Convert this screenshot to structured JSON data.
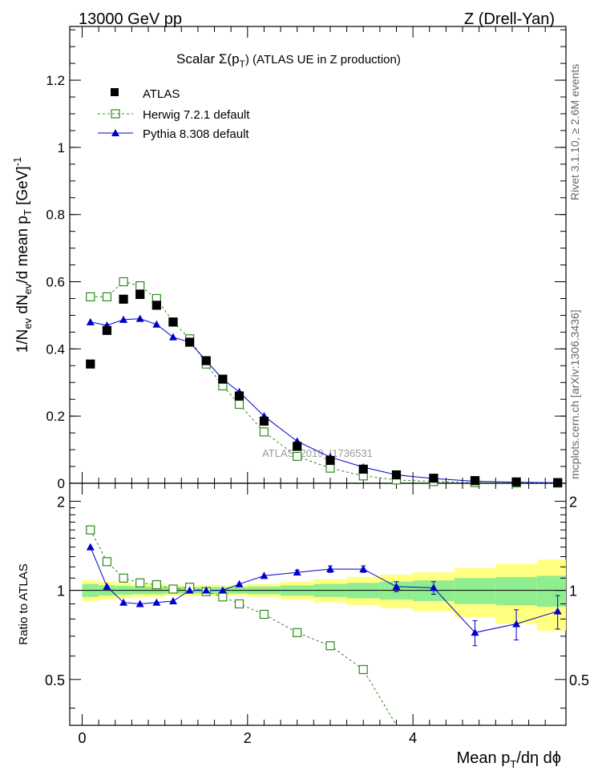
{
  "header": {
    "left": "13000 GeV pp",
    "right": "Z (Drell-Yan)"
  },
  "title": {
    "prefix": "Scalar ",
    "sigma": "Σ(p",
    "sub": "T",
    "suffix": ") (ATLAS UE in Z production)"
  },
  "ylabel_main": {
    "t1": "1/N",
    "s1": "ev",
    "t2": " dN",
    "s2": "ev",
    "t3": "/d mean p",
    "s3": "T",
    "t4": " [GeV]",
    "sup": "-1"
  },
  "ylabel_ratio": "Ratio to ATLAS",
  "xlabel": {
    "t1": "Mean p",
    "sub": "T",
    "t2": "/dη dϕ"
  },
  "side_text": {
    "rivet": "Rivet 3.1.10, ≥ 2.6M events",
    "mcplots": "mcplots.cern.ch [arXiv:1306.3436]"
  },
  "watermark": "ATLAS_2019_I1736531",
  "legend": {
    "atlas": "ATLAS",
    "herwig": "Herwig 7.2.1 default",
    "pythia": "Pythia 8.308 default"
  },
  "colors": {
    "atlas": "#000000",
    "herwig": "#2e8b1a",
    "pythia": "#0000cc",
    "band_inner": "#90ee90",
    "band_outer": "#ffff80"
  },
  "chart_data": [
    {
      "type": "scatter",
      "panel": "main",
      "xlim": [
        -0.15,
        5.85
      ],
      "ylim": [
        0,
        1.36
      ],
      "yticks": [
        "0",
        "0.2",
        "0.4",
        "0.6",
        "0.8",
        "1",
        "1.2"
      ],
      "series": [
        {
          "name": "ATLAS",
          "x": [
            0.1,
            0.3,
            0.5,
            0.7,
            0.9,
            1.1,
            1.3,
            1.5,
            1.7,
            1.9,
            2.2,
            2.6,
            3.0,
            3.4,
            3.8,
            4.25,
            4.75,
            5.25,
            5.75
          ],
          "y": [
            0.355,
            0.455,
            0.548,
            0.562,
            0.53,
            0.48,
            0.42,
            0.365,
            0.31,
            0.26,
            0.185,
            0.11,
            0.068,
            0.042,
            0.025,
            0.015,
            0.008,
            0.004,
            0.002
          ]
        },
        {
          "name": "Herwig 7.2.1 default",
          "x": [
            0.1,
            0.3,
            0.5,
            0.7,
            0.9,
            1.1,
            1.3,
            1.5,
            1.7,
            1.9,
            2.2,
            2.6,
            3.0,
            3.4,
            3.8,
            4.25,
            4.75,
            5.25,
            5.75
          ],
          "y": [
            0.555,
            0.555,
            0.6,
            0.588,
            0.55,
            0.48,
            0.43,
            0.355,
            0.29,
            0.235,
            0.153,
            0.08,
            0.045,
            0.022,
            0.01,
            0.005,
            0.002,
            0.001,
            0.0005
          ]
        },
        {
          "name": "Pythia 8.308 default",
          "x": [
            0.1,
            0.3,
            0.5,
            0.7,
            0.9,
            1.1,
            1.3,
            1.5,
            1.7,
            1.9,
            2.2,
            2.6,
            3.0,
            3.4,
            3.8,
            4.25,
            4.75,
            5.25,
            5.75
          ],
          "y": [
            0.48,
            0.47,
            0.487,
            0.49,
            0.473,
            0.435,
            0.42,
            0.365,
            0.31,
            0.272,
            0.2,
            0.125,
            0.078,
            0.048,
            0.025,
            0.014,
            0.006,
            0.003,
            0.0015
          ]
        }
      ]
    },
    {
      "type": "line",
      "panel": "ratio",
      "xlim": [
        -0.15,
        5.85
      ],
      "ylim": [
        0.35,
        2.3
      ],
      "yticks": [
        "0.5",
        "1",
        "2"
      ],
      "xticks": [
        "0",
        "2",
        "4"
      ],
      "band_edges": [
        0,
        0.2,
        0.4,
        0.6,
        0.8,
        1.0,
        1.2,
        1.4,
        1.6,
        1.8,
        2.0,
        2.4,
        2.8,
        3.2,
        3.6,
        4.0,
        4.5,
        5.0,
        5.5,
        6.0
      ],
      "band_inner": [
        0.05,
        0.04,
        0.035,
        0.03,
        0.03,
        0.025,
        0.025,
        0.025,
        0.025,
        0.025,
        0.03,
        0.04,
        0.05,
        0.06,
        0.07,
        0.08,
        0.1,
        0.11,
        0.12
      ],
      "band_outer": [
        0.08,
        0.07,
        0.06,
        0.05,
        0.05,
        0.04,
        0.04,
        0.04,
        0.04,
        0.04,
        0.05,
        0.07,
        0.09,
        0.11,
        0.13,
        0.15,
        0.19,
        0.23,
        0.27
      ],
      "series": [
        {
          "name": "Herwig 7.2.1 default",
          "x": [
            0.1,
            0.3,
            0.5,
            0.7,
            0.9,
            1.1,
            1.3,
            1.5,
            1.7,
            1.9,
            2.2,
            2.6,
            3.0,
            3.4,
            3.8
          ],
          "y": [
            1.6,
            1.25,
            1.1,
            1.06,
            1.045,
            1.01,
            1.025,
            0.99,
            0.95,
            0.9,
            0.83,
            0.72,
            0.65,
            0.54,
            0.32
          ]
        },
        {
          "name": "Pythia 8.308 default",
          "x": [
            0.1,
            0.3,
            0.5,
            0.7,
            0.9,
            1.1,
            1.3,
            1.5,
            1.7,
            1.9,
            2.2,
            2.6,
            3.0,
            3.4,
            3.8,
            4.25,
            4.75,
            5.25,
            5.75
          ],
          "y": [
            1.4,
            1.03,
            0.91,
            0.9,
            0.91,
            0.92,
            1.0,
            1.0,
            1.0,
            1.05,
            1.12,
            1.15,
            1.18,
            1.18,
            1.03,
            1.02,
            0.72,
            0.77,
            0.85
          ],
          "yerr": [
            0,
            0,
            0,
            0,
            0,
            0,
            0,
            0,
            0,
            0,
            0,
            0.02,
            0.03,
            0.03,
            0.04,
            0.05,
            0.07,
            0.09,
            0.11
          ]
        }
      ]
    }
  ]
}
